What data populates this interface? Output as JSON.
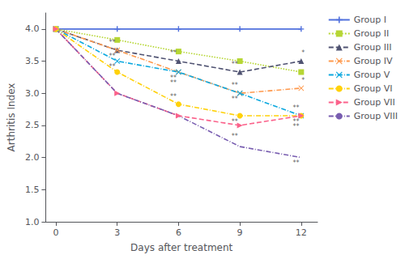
{
  "chart_data": {
    "type": "line",
    "xlabel": "Days after treatment",
    "ylabel": "Arthritis Index",
    "x": [
      0,
      3,
      6,
      9,
      12
    ],
    "series": [
      {
        "name": "Group I",
        "values": [
          4.0,
          4.0,
          4.0,
          4.0,
          4.0
        ],
        "marker": "plus",
        "line_style": "solid"
      },
      {
        "name": "Group II",
        "values": [
          4.0,
          3.83,
          3.65,
          3.5,
          3.33
        ],
        "marker": "square",
        "line_style": "dotted"
      },
      {
        "name": "Group III",
        "values": [
          4.0,
          3.67,
          3.5,
          3.33,
          3.5
        ],
        "marker": "triangle",
        "line_style": "dashed"
      },
      {
        "name": "Group IV",
        "values": [
          4.0,
          3.67,
          3.33,
          3.0,
          3.08
        ],
        "marker": "x",
        "line_style": "dashdot"
      },
      {
        "name": "Group V",
        "values": [
          4.0,
          3.5,
          3.33,
          3.0,
          2.65
        ],
        "marker": "x",
        "line_style": "dashdot"
      },
      {
        "name": "Group VI",
        "values": [
          4.0,
          3.33,
          2.83,
          2.65,
          2.65
        ],
        "marker": "circle",
        "line_style": "dashdot"
      },
      {
        "name": "Group VII",
        "values": [
          4.0,
          3.0,
          2.65,
          2.5,
          2.65
        ],
        "marker": "triangle-right",
        "line_style": "dashed"
      },
      {
        "name": "Group VIII",
        "values": [
          4.0,
          3.0,
          2.65,
          2.17,
          2.0
        ],
        "marker": "none",
        "line_style": "dashdot"
      }
    ],
    "annotations": [
      {
        "text": "**",
        "x": 2.75,
        "y": 3.74
      },
      {
        "text": "**",
        "x": 2.75,
        "y": 3.53
      },
      {
        "text": "**",
        "x": 2.75,
        "y": 3.36
      },
      {
        "text": "**",
        "x": 5.75,
        "y": 2.9
      },
      {
        "text": "**",
        "x": 5.75,
        "y": 3.57
      },
      {
        "text": "**",
        "x": 5.75,
        "y": 3.19
      },
      {
        "text": "**",
        "x": 5.75,
        "y": 3.11
      },
      {
        "text": "**",
        "x": 8.75,
        "y": 3.4
      },
      {
        "text": "**",
        "x": 8.75,
        "y": 3.07
      },
      {
        "text": "**",
        "x": 8.75,
        "y": 2.86
      },
      {
        "text": "**",
        "x": 8.75,
        "y": 2.51
      },
      {
        "text": "**",
        "x": 8.75,
        "y": 2.28
      },
      {
        "text": "*",
        "x": 12.1,
        "y": 3.57
      },
      {
        "text": "*",
        "x": 12.1,
        "y": 3.15
      },
      {
        "text": "**",
        "x": 11.75,
        "y": 2.72
      },
      {
        "text": "**",
        "x": 11.75,
        "y": 2.51
      },
      {
        "text": "**",
        "x": 11.75,
        "y": 2.43
      },
      {
        "text": "**",
        "x": 11.75,
        "y": 1.86
      }
    ],
    "xlim": [
      -0.5,
      12.8
    ],
    "xticks": [
      0,
      3,
      6,
      9,
      12
    ],
    "ylim": [
      1.0,
      4.25
    ],
    "yticks": [
      {
        "value": 1.0,
        "label": "1.0"
      },
      1.5,
      {
        "value": 2.0,
        "label": "2.0"
      },
      2.5,
      {
        "value": 3.0,
        "label": "3.0"
      },
      3.5,
      {
        "value": 4.0,
        "label": "4.0"
      }
    ],
    "grid": false,
    "legend": "right"
  }
}
